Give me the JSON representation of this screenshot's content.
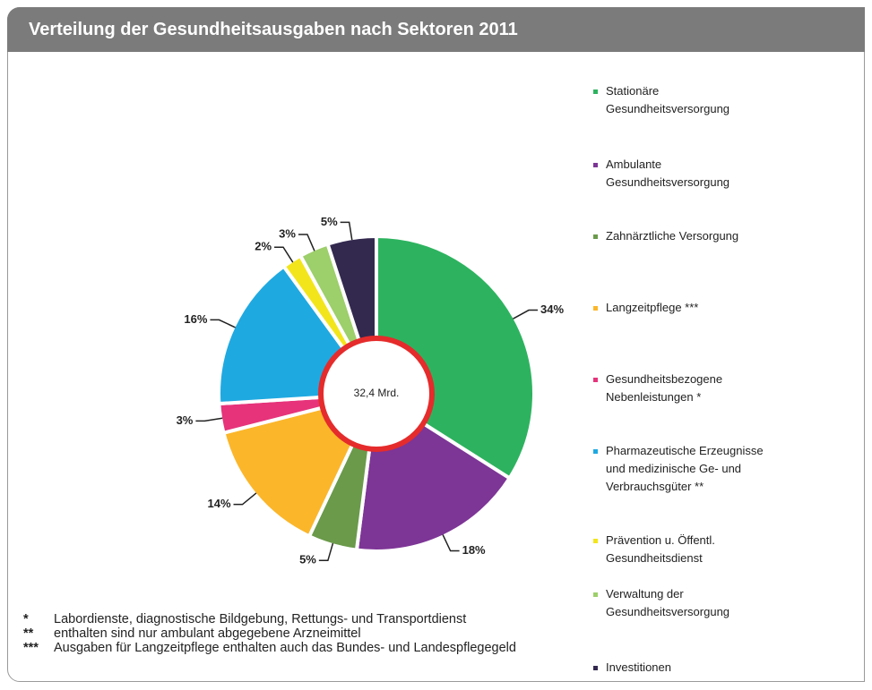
{
  "chart_data": {
    "type": "pie",
    "title": "Verteilung der Gesundheitsausgaben nach Sektoren 2011",
    "center_label": "32,4 Mrd.",
    "categories": [
      "Stationäre Gesundheitsversorgung",
      "Ambulante Gesundheitsversorgung",
      "Zahnärztliche Versorgung",
      "Langzeitpflege ***",
      "Gesundheitsbezogene Nebenleistungen *",
      "Pharmazeutische Erzeugnisse und medizinische Ge- und Verbrauchsgüter **",
      "Prävention u. Öffentl. Gesundheitsdienst",
      "Verwaltung der Gesundheitsversorgung",
      "Investitionen"
    ],
    "values": [
      34,
      18,
      5,
      14,
      3,
      16,
      2,
      3,
      5
    ],
    "value_labels": [
      "34%",
      "18%",
      "5%",
      "14%",
      "3%",
      "16%",
      "2%",
      "3%",
      "5%"
    ],
    "colors": [
      "#2db35f",
      "#7d3596",
      "#6a9a4a",
      "#fbb62a",
      "#e6337a",
      "#1fa9e1",
      "#f3e51c",
      "#9dcf6a",
      "#33294f"
    ]
  },
  "footnotes": [
    {
      "marker": "*",
      "text": "Labordienste, diagnostische Bildgebung, Rettungs- und Transportdienst"
    },
    {
      "marker": "**",
      "text": "enthalten sind nur ambulant abgegebene Arzneimittel"
    },
    {
      "marker": "***",
      "text": "Ausgaben für Langzeitpflege enthalten auch das Bundes- und Landespflegegeld"
    }
  ]
}
